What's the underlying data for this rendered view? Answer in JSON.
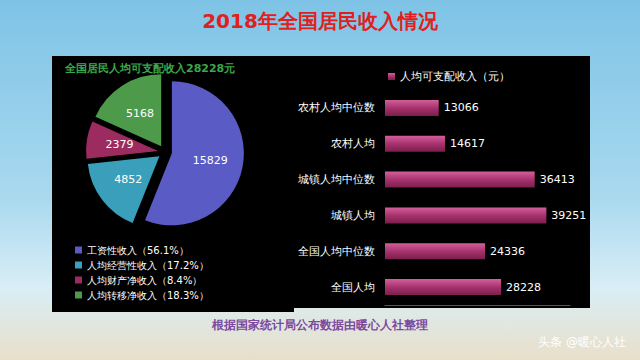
{
  "title": "2018年全国居民收入情况",
  "footer": "根据国家统计局公布数据由暖心人社整理",
  "watermark": "头条 @暖心人社",
  "chart_data": [
    {
      "type": "pie",
      "title": "全国居民人均可支配收入28228元",
      "categories": [
        "工资性收入（56.1%）",
        "人均经营性收入（17.2%）",
        "人均财产净收入（8.4%）",
        "人均转移净收入（18.3%）"
      ],
      "values": [
        15829,
        4852,
        2379,
        5168
      ],
      "colors": [
        "#5a5bc4",
        "#3a9fba",
        "#9c2b60",
        "#4c9a4a"
      ],
      "data_labels": true,
      "legend": "bottom"
    },
    {
      "type": "bar",
      "orientation": "horizontal",
      "categories": [
        "农村人均中位数",
        "农村人均",
        "城镇人均中位数",
        "城镇人均",
        "全国人均中位数",
        "全国人均"
      ],
      "series": [
        {
          "name": "人均可支配收入（元）",
          "color": "#a8326e",
          "values": [
            13066,
            14617,
            36413,
            39251,
            24336,
            28228
          ]
        }
      ],
      "xlim": [
        0,
        45000
      ],
      "data_labels": true,
      "tick_labels": "y",
      "grid": false,
      "legend": "top"
    }
  ]
}
